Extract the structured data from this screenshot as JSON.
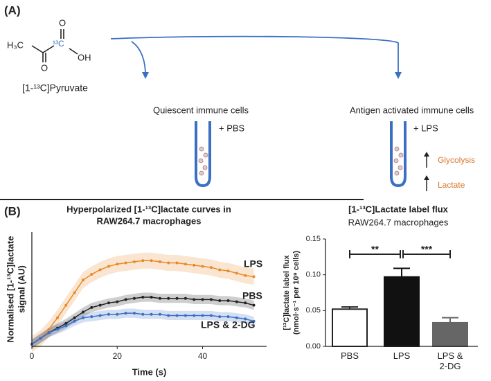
{
  "panel_a": {
    "label": "(A)",
    "molecule": {
      "methyl": "H₃C",
      "keto_o": "O",
      "carbon": "¹³C",
      "acid_o": "O",
      "hydroxyl": "OH",
      "name": "[1-¹³C]Pyruvate"
    },
    "quiescent": {
      "title": "Quiescent immune cells",
      "treatment": "+ PBS"
    },
    "activated": {
      "title": "Antigen activated immune cells",
      "treatment": "+ LPS",
      "effects": [
        "Glycolysis",
        "Lactate"
      ]
    }
  },
  "panel_b_label": "(B)",
  "chart_data": [
    {
      "type": "line",
      "title": [
        "Hyperpolarized [1-¹³C]lactate curves in",
        "RAW264.7 macrophages"
      ],
      "xlabel": "Time (s)",
      "ylabel": [
        "Normalised [1-¹³C]lactate",
        "signal (AU)"
      ],
      "x": [
        0,
        2,
        4,
        6,
        8,
        10,
        12,
        14,
        16,
        18,
        20,
        22,
        24,
        26,
        28,
        30,
        32,
        34,
        36,
        38,
        40,
        42,
        44,
        46,
        48,
        50,
        52
      ],
      "xlim": [
        0,
        55
      ],
      "xticks": [
        0,
        20,
        40
      ],
      "ylim": [
        0,
        1
      ],
      "series": [
        {
          "name": "LPS",
          "color": "#e8892b",
          "error": 0.07,
          "values": [
            0.02,
            0.07,
            0.15,
            0.25,
            0.36,
            0.47,
            0.58,
            0.63,
            0.67,
            0.7,
            0.72,
            0.73,
            0.74,
            0.75,
            0.75,
            0.74,
            0.73,
            0.73,
            0.72,
            0.71,
            0.7,
            0.69,
            0.67,
            0.66,
            0.64,
            0.62,
            0.61
          ]
        },
        {
          "name": "PBS",
          "color": "#222222",
          "error": 0.04,
          "values": [
            0.02,
            0.07,
            0.12,
            0.16,
            0.2,
            0.25,
            0.3,
            0.34,
            0.36,
            0.38,
            0.39,
            0.41,
            0.42,
            0.43,
            0.43,
            0.42,
            0.42,
            0.42,
            0.42,
            0.41,
            0.41,
            0.41,
            0.4,
            0.4,
            0.39,
            0.38,
            0.36
          ]
        },
        {
          "name": "LPS & 2-DG",
          "color": "#3a6fc4",
          "error": 0.04,
          "values": [
            0.02,
            0.07,
            0.12,
            0.15,
            0.18,
            0.22,
            0.25,
            0.26,
            0.27,
            0.28,
            0.28,
            0.29,
            0.29,
            0.28,
            0.28,
            0.28,
            0.27,
            0.27,
            0.27,
            0.27,
            0.27,
            0.27,
            0.26,
            0.26,
            0.25,
            0.24,
            0.22
          ]
        }
      ]
    },
    {
      "type": "bar",
      "title": "[1-¹³C]Lactate label flux",
      "subtitle": "RAW264.7 macrophages",
      "ylabel": [
        "[¹³C]lactate label flux",
        "(nmol·s⁻¹ per 10⁹ cells)"
      ],
      "categories": [
        "PBS",
        "LPS",
        "LPS & 2-DG"
      ],
      "values": [
        0.052,
        0.097,
        0.033
      ],
      "errors": [
        0.003,
        0.012,
        0.007
      ],
      "colors": [
        "#ffffff",
        "#111111",
        "#666666"
      ],
      "ylim": [
        0,
        0.15
      ],
      "yticks": [
        {
          "value": 0,
          "label": "0.00"
        },
        {
          "value": 0.05,
          "label": "0.05"
        },
        {
          "value": 0.1,
          "label": "0.10"
        },
        {
          "value": 0.15,
          "label": "0.15"
        }
      ],
      "annotations": [
        {
          "text": "**"
        },
        {
          "text": "***"
        }
      ]
    }
  ]
}
